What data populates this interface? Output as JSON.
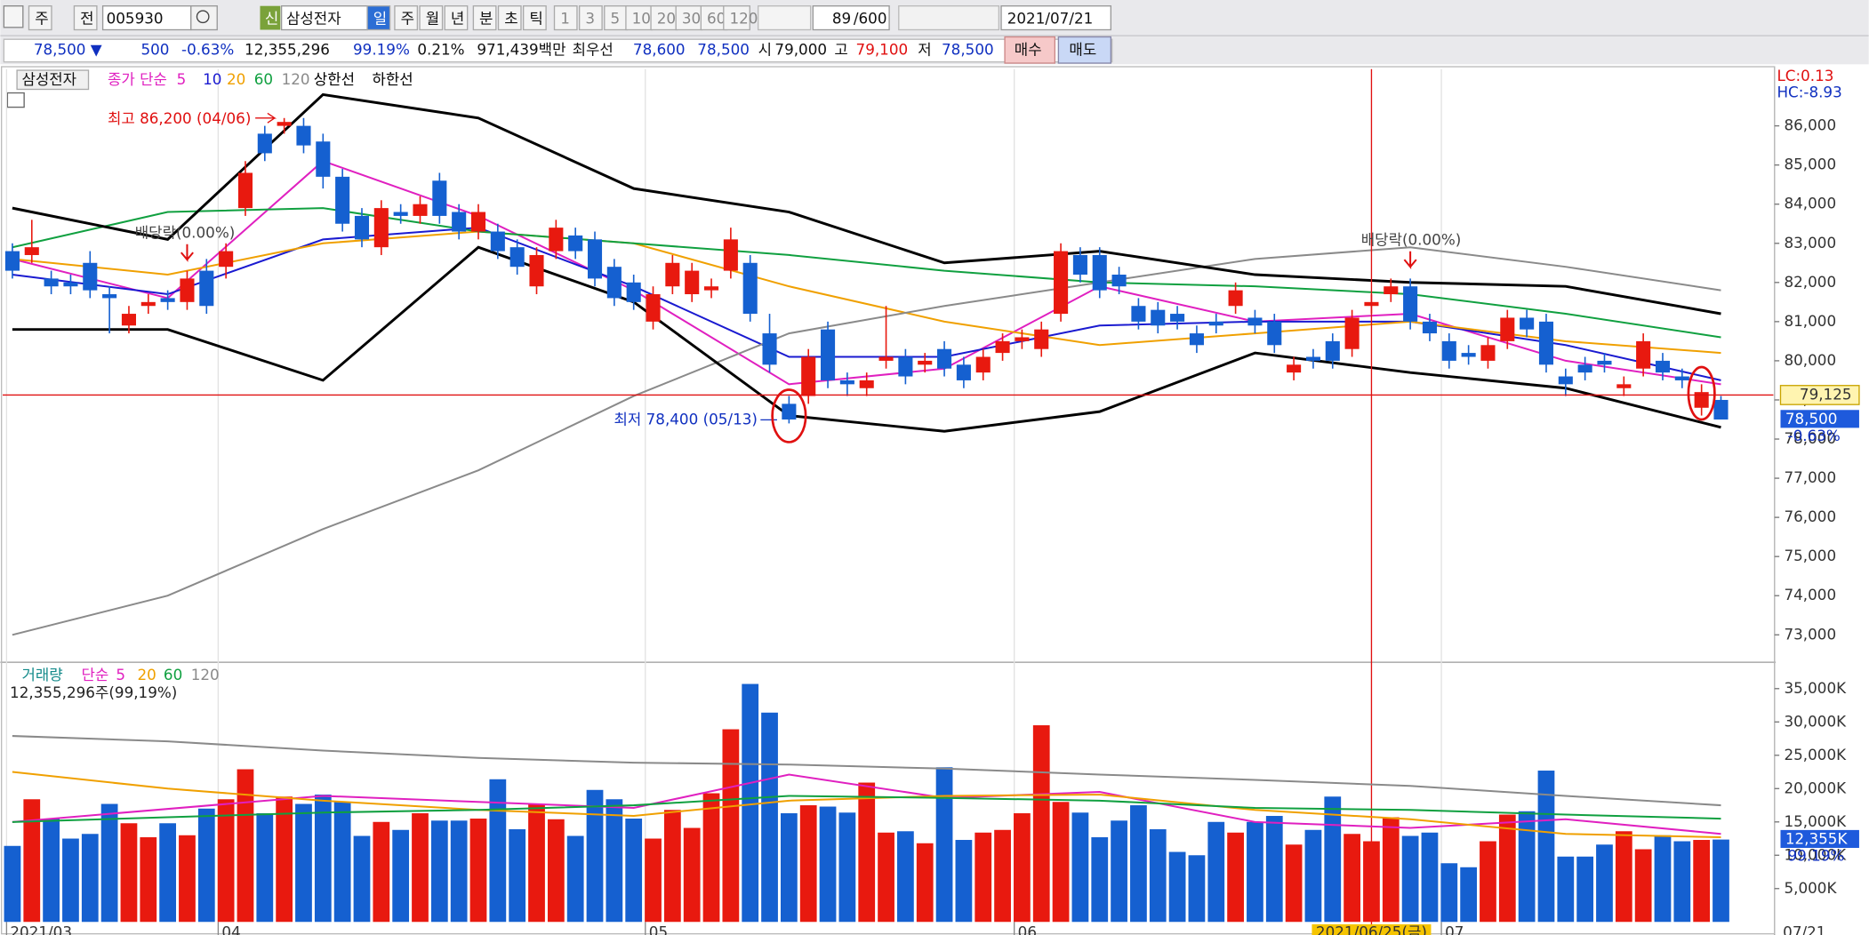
{
  "toolbar": {
    "row1": [
      "주",
      "전",
      "005930",
      "신",
      "삼성전자",
      "일",
      "주",
      "월",
      "년",
      "분",
      "초",
      "틱",
      "1",
      "3",
      "5",
      "10",
      "20",
      "30",
      "60",
      "120",
      "89",
      "/600",
      "2021/07/21"
    ],
    "row2": [
      "78,500 ▼",
      "500",
      "-0.63%",
      "12,355,296",
      "99.19%",
      "0.21%",
      "971,439백만",
      "최우선",
      "78,600",
      "78,500",
      "시",
      "79,000",
      "고",
      "79,100",
      "저",
      "78,500",
      "매수",
      "매도"
    ]
  },
  "chart_data": [
    {
      "type": "candlestick",
      "title": "삼성전자",
      "legend_prefix": "종가 단순",
      "open": [
        82800,
        82700,
        82100,
        82000,
        82500,
        81700,
        80900,
        81400,
        81600,
        81500,
        82300,
        82400,
        83900,
        85800,
        86000,
        86000,
        85600,
        84700,
        83700,
        82900,
        83800,
        83700,
        84600,
        83800,
        83300,
        83300,
        82900,
        81900,
        82800,
        83200,
        83100,
        82400,
        82000,
        81000,
        81900,
        81700,
        81800,
        82300,
        82500,
        80700,
        78900,
        79100,
        80800,
        79500,
        79300,
        80000,
        80100,
        79900,
        80300,
        79900,
        79700,
        80200,
        80500,
        80300,
        81200,
        82700,
        82700,
        82200,
        81400,
        81300,
        81200,
        80700,
        81000,
        81400,
        81100,
        81000,
        79700,
        80100,
        80500,
        80300,
        81400,
        81700,
        81900,
        81000,
        80500,
        80200,
        80000,
        80500,
        81100,
        81000,
        79600,
        79900,
        80000,
        79300,
        79800,
        80000,
        79600,
        78800,
        79000
      ],
      "high": [
        83000,
        83600,
        82300,
        82200,
        82800,
        81900,
        81400,
        81700,
        81800,
        82300,
        82600,
        83000,
        85100,
        86000,
        86200,
        86200,
        85800,
        84900,
        83900,
        84100,
        84000,
        84200,
        84800,
        84000,
        84000,
        83500,
        83100,
        82900,
        83600,
        83400,
        83300,
        82600,
        82200,
        81900,
        82700,
        82500,
        82100,
        83400,
        82700,
        81200,
        79100,
        80300,
        81000,
        79700,
        79700,
        81400,
        80300,
        80200,
        80500,
        80100,
        80300,
        80700,
        80800,
        81000,
        83000,
        82900,
        82900,
        82400,
        81600,
        81500,
        81400,
        80900,
        81200,
        82000,
        81300,
        81200,
        80100,
        80300,
        80700,
        81300,
        81700,
        82100,
        82100,
        81200,
        80700,
        80400,
        80600,
        81300,
        81300,
        81200,
        79800,
        80100,
        80200,
        79600,
        80700,
        80200,
        79800,
        79400,
        79100
      ],
      "low": [
        82100,
        82500,
        81700,
        81700,
        81600,
        80700,
        80700,
        81200,
        81300,
        81300,
        81200,
        82100,
        83700,
        85100,
        85800,
        85300,
        84400,
        83300,
        82900,
        82700,
        83500,
        83500,
        83500,
        83100,
        83100,
        82600,
        82200,
        81700,
        82600,
        82600,
        81900,
        81400,
        81300,
        80800,
        81700,
        81500,
        81600,
        82100,
        81000,
        79700,
        78400,
        78900,
        79300,
        79100,
        79100,
        79800,
        79400,
        79700,
        79600,
        79300,
        79500,
        80000,
        80300,
        80100,
        81000,
        82000,
        81600,
        81700,
        80800,
        80700,
        80800,
        80200,
        80700,
        81200,
        80700,
        80200,
        79500,
        79800,
        79800,
        80100,
        81200,
        81500,
        80800,
        80500,
        79800,
        79900,
        79800,
        80300,
        80600,
        79700,
        79100,
        79500,
        79700,
        79100,
        79600,
        79500,
        79300,
        78600,
        78500
      ],
      "close": [
        82300,
        82900,
        81900,
        81900,
        81800,
        81600,
        81200,
        81500,
        81500,
        82100,
        81400,
        82800,
        84800,
        85300,
        86100,
        85500,
        84700,
        83500,
        83100,
        83900,
        83700,
        84000,
        83700,
        83300,
        83800,
        82800,
        82400,
        82700,
        83400,
        82800,
        82100,
        81600,
        81500,
        81700,
        82500,
        82300,
        81900,
        83100,
        81200,
        79900,
        78500,
        80100,
        79500,
        79400,
        79500,
        80100,
        79600,
        80000,
        79800,
        79500,
        80100,
        80500,
        80600,
        80800,
        82800,
        82200,
        81800,
        81900,
        81000,
        80900,
        81000,
        80400,
        80900,
        81800,
        80900,
        80400,
        79900,
        80000,
        80000,
        81100,
        81500,
        81900,
        81000,
        80700,
        80000,
        80100,
        80400,
        81100,
        80800,
        79900,
        79400,
        79700,
        79900,
        79400,
        80500,
        79700,
        79500,
        79200,
        78500
      ],
      "up_color": "#e8190f",
      "down_color": "#1560d0",
      "series": [
        {
          "name": "5",
          "color": "#e020c0",
          "x": [
            0,
            8,
            16,
            24,
            32,
            40,
            48,
            56,
            64,
            72,
            80,
            88
          ],
          "values": [
            82600,
            81600,
            85100,
            83700,
            81800,
            79400,
            79800,
            81900,
            81000,
            81200,
            80000,
            79400
          ]
        },
        {
          "name": "10",
          "color": "#1a1ad0",
          "x": [
            0,
            8,
            16,
            24,
            32,
            40,
            48,
            56,
            64,
            72,
            80,
            88
          ],
          "values": [
            82200,
            81700,
            83100,
            83400,
            81900,
            80100,
            80100,
            80900,
            81000,
            81000,
            80400,
            79500
          ]
        },
        {
          "name": "20",
          "color": "#f0a000",
          "x": [
            0,
            8,
            16,
            24,
            32,
            40,
            48,
            56,
            64,
            72,
            80,
            88
          ],
          "values": [
            82600,
            82200,
            83000,
            83300,
            83000,
            81900,
            81000,
            80400,
            80700,
            81000,
            80500,
            80200
          ]
        },
        {
          "name": "60",
          "color": "#10a040",
          "x": [
            0,
            8,
            16,
            24,
            32,
            40,
            48,
            56,
            64,
            72,
            80,
            88
          ],
          "values": [
            82900,
            83800,
            83900,
            83300,
            83000,
            82700,
            82300,
            82000,
            81900,
            81700,
            81200,
            80600
          ]
        },
        {
          "name": "120",
          "color": "#8a8a8a",
          "x": [
            0,
            8,
            16,
            24,
            32,
            40,
            48,
            56,
            64,
            72,
            80,
            88
          ],
          "values": [
            73000,
            74000,
            75700,
            77200,
            79100,
            80700,
            81400,
            82000,
            82600,
            82900,
            82400,
            81800
          ]
        },
        {
          "name": "상한선",
          "color": "#000000",
          "x": [
            0,
            8,
            16,
            24,
            32,
            40,
            48,
            56,
            64,
            72,
            80,
            88
          ],
          "values": [
            83900,
            83100,
            86800,
            86200,
            84400,
            83800,
            82500,
            82800,
            82200,
            82000,
            81900,
            81200
          ]
        },
        {
          "name": "하한선",
          "color": "#000000",
          "x": [
            0,
            8,
            16,
            24,
            32,
            40,
            48,
            56,
            64,
            72,
            80,
            88
          ],
          "values": [
            80800,
            80800,
            79500,
            82900,
            81500,
            78600,
            78200,
            78700,
            80200,
            79700,
            79300,
            78300
          ]
        }
      ],
      "xlim": [
        -0.5,
        90.7
      ],
      "ylim": [
        72300,
        87450
      ],
      "yticks": [
        {
          "value": 73000,
          "label": "73,000"
        },
        {
          "value": 74000,
          "label": "74,000"
        },
        {
          "value": 75000,
          "label": "75,000"
        },
        {
          "value": 76000,
          "label": "76,000"
        },
        {
          "value": 77000,
          "label": "77,000"
        },
        {
          "value": 78000,
          "label": "78,000"
        },
        {
          "value": 79000,
          "label": "79,000"
        },
        {
          "value": 80000,
          "label": "80,000"
        },
        {
          "value": 81000,
          "label": "81,000"
        },
        {
          "value": 82000,
          "label": "82,000"
        },
        {
          "value": 83000,
          "label": "83,000"
        },
        {
          "value": 84000,
          "label": "84,000"
        },
        {
          "value": 85000,
          "label": "85,000"
        },
        {
          "value": 86000,
          "label": "86,000"
        }
      ],
      "xticks": [
        {
          "value": -0.3,
          "label": "2021/03"
        },
        {
          "value": 10.6,
          "label": "04"
        },
        {
          "value": 32.6,
          "label": "05"
        },
        {
          "value": 51.6,
          "label": "06"
        },
        {
          "value": 73.6,
          "label": "07"
        }
      ],
      "end_date_label": "07/21",
      "lc_label": "LC:0.13",
      "hc_label": "HC:-8.93",
      "high_annotation": "최고 86,200 (04/06)",
      "low_annotation": "최저 78,400 (05/13)",
      "dividend_labels": [
        "배당락(0.00%)",
        "배당락(0.00%)"
      ],
      "crosshair": {
        "x": 70,
        "price": 79125,
        "price_label": "79,125",
        "date_label": "2021/06/25(금)"
      },
      "last": {
        "value": 78500,
        "label": "78,500",
        "change_label": "-0.63%"
      }
    },
    {
      "type": "bar",
      "title": "거래량",
      "legend_prefix": "단순",
      "info": "12,355,296주(99,19%)",
      "values": [
        11400,
        18400,
        15500,
        12500,
        13200,
        17700,
        14800,
        12700,
        14800,
        13000,
        17000,
        18400,
        22900,
        16300,
        18800,
        17700,
        19100,
        18000,
        12900,
        15000,
        13800,
        16300,
        15200,
        15200,
        15500,
        21400,
        13900,
        17700,
        15400,
        12900,
        19800,
        18400,
        15500,
        12500,
        16800,
        14100,
        19300,
        28900,
        35700,
        31400,
        16300,
        17500,
        17300,
        16400,
        20900,
        13400,
        13600,
        11800,
        23200,
        12300,
        13400,
        13800,
        16300,
        29500,
        18000,
        16400,
        12700,
        15200,
        17500,
        13900,
        10500,
        10000,
        15000,
        13400,
        15000,
        15900,
        11600,
        13800,
        18800,
        13200,
        12100,
        15700,
        12900,
        13400,
        8800,
        8200,
        12100,
        16100,
        16600,
        22700,
        9800,
        9800,
        11600,
        13600,
        10900,
        13000,
        12100,
        12300,
        12355
      ],
      "value_labels": {
        "88": "12,355K"
      },
      "ratio_label": "99.19%",
      "series": [
        {
          "name": "5",
          "color": "#e020c0",
          "x": [
            0,
            16,
            32,
            40,
            48,
            56,
            64,
            72,
            80,
            88
          ],
          "values": [
            15000,
            18900,
            17100,
            22100,
            18600,
            19500,
            15000,
            14100,
            15400,
            13200
          ]
        },
        {
          "name": "20",
          "color": "#f0a000",
          "x": [
            0,
            8,
            16,
            24,
            32,
            40,
            48,
            56,
            64,
            72,
            80,
            88
          ],
          "values": [
            22500,
            20000,
            18200,
            16800,
            15900,
            18200,
            18900,
            19100,
            16800,
            15400,
            13200,
            12700
          ]
        },
        {
          "name": "60",
          "color": "#10a040",
          "x": [
            0,
            8,
            16,
            24,
            32,
            40,
            48,
            56,
            64,
            72,
            80,
            88
          ],
          "values": [
            15000,
            15700,
            16400,
            16800,
            17500,
            18900,
            18600,
            18200,
            17100,
            16800,
            16100,
            15500
          ]
        },
        {
          "name": "120",
          "color": "#8a8a8a",
          "x": [
            0,
            8,
            16,
            24,
            32,
            40,
            48,
            56,
            64,
            72,
            80,
            88
          ],
          "values": [
            27900,
            27100,
            25700,
            24600,
            23900,
            23600,
            23000,
            22100,
            21300,
            20400,
            18900,
            17500
          ]
        }
      ],
      "xlim": [
        -0.5,
        90.7
      ],
      "ylim": [
        0,
        38600
      ],
      "yticks": [
        {
          "value": 5000,
          "label": "5,000K"
        },
        {
          "value": 10000,
          "label": "10,000K"
        },
        {
          "value": 15000,
          "label": "15,000K"
        },
        {
          "value": 20000,
          "label": "20,000K"
        },
        {
          "value": 25000,
          "label": "25,000K"
        },
        {
          "value": 30000,
          "label": "30,000K"
        },
        {
          "value": 35000,
          "label": "35,000K"
        }
      ]
    }
  ]
}
